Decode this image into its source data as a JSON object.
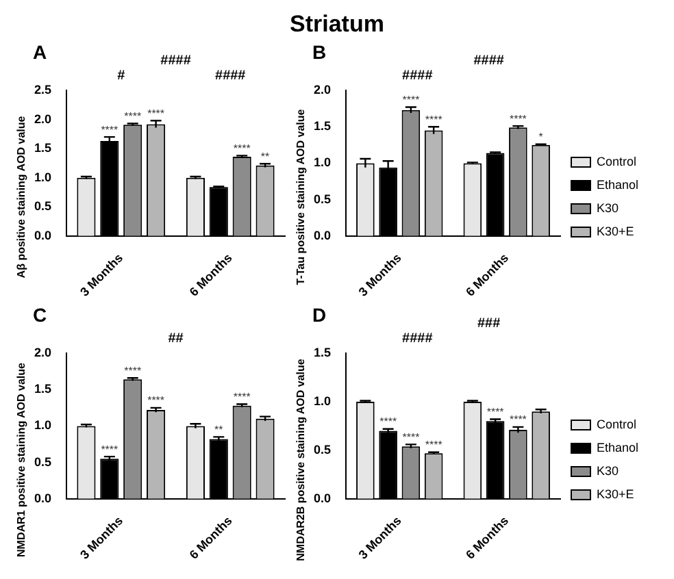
{
  "chart_data": [
    {
      "type": "bar",
      "title": "A",
      "ylabel": "Aβ positive staining AOD value",
      "categories": [
        "3 Months",
        "6 Months"
      ],
      "ylim": [
        0,
        2.5
      ],
      "yticks": [
        {
          "value": 0,
          "label": "0.0"
        },
        0.5,
        {
          "value": 1,
          "label": "1.0"
        },
        1.5,
        {
          "value": 2,
          "label": "2.0"
        },
        2.5
      ],
      "grid": false,
      "legend": false,
      "series": [
        {
          "color": "#e6e6e6",
          "values": [
            1.0,
            1.0
          ],
          "errors": [
            0.02,
            0.02
          ]
        },
        {
          "color": "#000000",
          "values": [
            1.63,
            0.84
          ],
          "errors": [
            0.07,
            0.01
          ],
          "value_labels": [
            "****",
            null
          ]
        },
        {
          "color": "#8c8c8c",
          "values": [
            1.91,
            1.36
          ],
          "errors": [
            0.02,
            0.02
          ],
          "value_labels": [
            "****",
            "****"
          ]
        },
        {
          "color": "#b5b5b5",
          "values": [
            1.92,
            1.21
          ],
          "errors": [
            0.06,
            0.03
          ],
          "value_labels": [
            "****",
            "**"
          ]
        }
      ],
      "annotations": [
        "Striatum",
        "#",
        "####",
        "####"
      ]
    },
    {
      "type": "bar",
      "title": "B",
      "ylabel": "T-Tau positive staining AOD value",
      "categories": [
        "3 Months",
        "6 Months"
      ],
      "ylim": [
        0,
        2
      ],
      "yticks": [
        {
          "value": 0,
          "label": "0.0"
        },
        0.5,
        {
          "value": 1,
          "label": "1.0"
        },
        1.5,
        {
          "value": 2,
          "label": "2.0"
        }
      ],
      "grid": false,
      "legend": "right",
      "series": [
        {
          "name": "Control",
          "color": "#e6e6e6",
          "values": [
            1.0,
            1.0
          ],
          "errors": [
            0.06,
            0.01
          ]
        },
        {
          "name": "Ethanol",
          "color": "#000000",
          "values": [
            0.94,
            1.14
          ],
          "errors": [
            0.09,
            0.01
          ]
        },
        {
          "name": "K30",
          "color": "#8c8c8c",
          "values": [
            1.73,
            1.49
          ],
          "errors": [
            0.04,
            0.02
          ],
          "value_labels": [
            "****",
            "****"
          ]
        },
        {
          "name": "K30+E",
          "color": "#b5b5b5",
          "values": [
            1.45,
            1.25
          ],
          "errors": [
            0.05,
            0.01
          ],
          "value_labels": [
            "****",
            "*"
          ]
        }
      ],
      "annotations": [
        "####",
        "####"
      ]
    },
    {
      "type": "bar",
      "title": "C",
      "ylabel": "NMDAR1 positive staining AOD value",
      "categories": [
        "3 Months",
        "6 Months"
      ],
      "ylim": [
        0,
        2
      ],
      "yticks": [
        {
          "value": 0,
          "label": "0.0"
        },
        0.5,
        {
          "value": 1,
          "label": "1.0"
        },
        1.5,
        {
          "value": 2,
          "label": "2.0"
        }
      ],
      "grid": false,
      "legend": false,
      "series": [
        {
          "color": "#e6e6e6",
          "values": [
            1.0,
            1.0
          ],
          "errors": [
            0.02,
            0.03
          ]
        },
        {
          "color": "#000000",
          "values": [
            0.55,
            0.82
          ],
          "errors": [
            0.03,
            0.03
          ],
          "value_labels": [
            "****",
            "**"
          ]
        },
        {
          "color": "#8c8c8c",
          "values": [
            1.64,
            1.28
          ],
          "errors": [
            0.02,
            0.02
          ],
          "value_labels": [
            "****",
            "****"
          ]
        },
        {
          "color": "#b5b5b5",
          "values": [
            1.22,
            1.1
          ],
          "errors": [
            0.03,
            0.03
          ],
          "value_labels": [
            "****",
            null
          ]
        }
      ],
      "annotations": [
        "##"
      ]
    },
    {
      "type": "bar",
      "title": "D",
      "ylabel": "NMDAR2B positive staining AOD value",
      "categories": [
        "3 Months",
        "6 Months"
      ],
      "ylim": [
        0,
        1.5
      ],
      "yticks": [
        {
          "value": 0,
          "label": "0.0"
        },
        0.5,
        {
          "value": 1,
          "label": "1.0"
        },
        1.5
      ],
      "grid": false,
      "legend": "right",
      "series": [
        {
          "name": "Control",
          "color": "#e6e6e6",
          "values": [
            1.0,
            1.0
          ],
          "errors": [
            0.01,
            0.01
          ]
        },
        {
          "name": "Ethanol",
          "color": "#000000",
          "values": [
            0.7,
            0.8
          ],
          "errors": [
            0.02,
            0.02
          ],
          "value_labels": [
            "****",
            "****"
          ]
        },
        {
          "name": "K30",
          "color": "#8c8c8c",
          "values": [
            0.54,
            0.71
          ],
          "errors": [
            0.02,
            0.03
          ],
          "value_labels": [
            "****",
            "****"
          ]
        },
        {
          "name": "K30+E",
          "color": "#b5b5b5",
          "values": [
            0.47,
            0.9
          ],
          "errors": [
            0.01,
            0.02
          ],
          "value_labels": [
            "****",
            null
          ]
        }
      ],
      "annotations": [
        "####",
        "###"
      ]
    }
  ]
}
